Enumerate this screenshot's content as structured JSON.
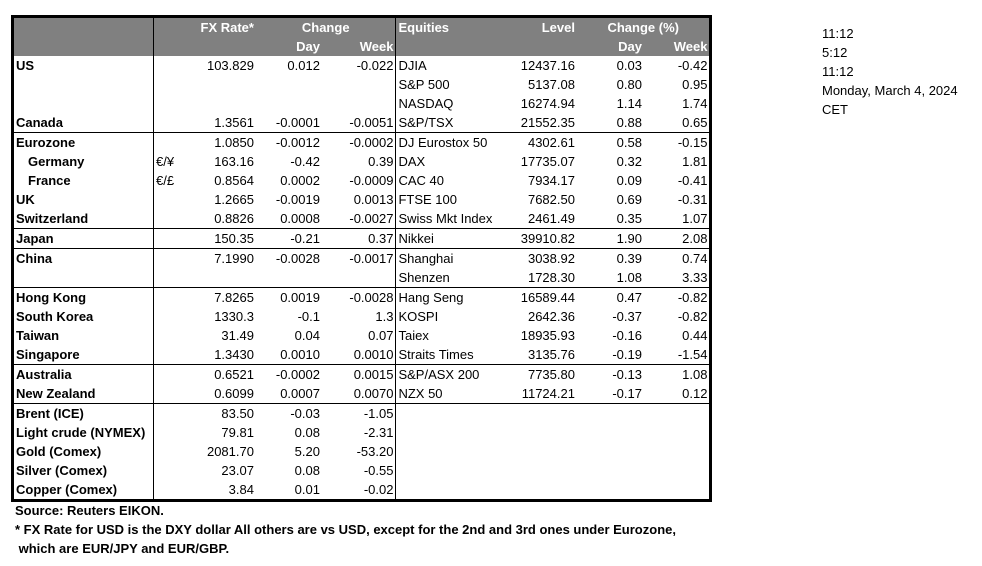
{
  "header": {
    "fx_rate": "FX Rate*",
    "change": "Change",
    "day": "Day",
    "week": "Week",
    "equities": "Equities",
    "level": "Level",
    "change_pct": "Change (%)",
    "eq_day": "Day",
    "eq_week": "Week"
  },
  "groups": [
    {
      "rows": [
        {
          "name": "US",
          "cur": "",
          "fx": "103.829",
          "day": "0.012",
          "week": "-0.022",
          "eq": "DJIA",
          "level": "12437.16",
          "eq_day": "0.03",
          "eq_week": "-0.42"
        },
        {
          "name": "",
          "cur": "",
          "fx": "",
          "day": "",
          "week": "",
          "eq": "S&P 500",
          "level": "5137.08",
          "eq_day": "0.80",
          "eq_week": "0.95"
        },
        {
          "name": "",
          "cur": "",
          "fx": "",
          "day": "",
          "week": "",
          "eq": "NASDAQ",
          "level": "16274.94",
          "eq_day": "1.14",
          "eq_week": "1.74"
        },
        {
          "name": "Canada",
          "cur": "",
          "fx": "1.3561",
          "day": "-0.0001",
          "week": "-0.0051",
          "eq": "S&P/TSX",
          "level": "21552.35",
          "eq_day": "0.88",
          "eq_week": "0.65"
        }
      ]
    },
    {
      "rows": [
        {
          "name": "Eurozone",
          "cur": "",
          "fx": "1.0850",
          "day": "-0.0012",
          "week": "-0.0002",
          "eq": "DJ Eurostox 50",
          "level": "4302.61",
          "eq_day": "0.58",
          "eq_week": "-0.15"
        },
        {
          "name": "Germany",
          "indent": true,
          "cur": "€/¥",
          "fx": "163.16",
          "day": "-0.42",
          "week": "0.39",
          "eq": "DAX",
          "level": "17735.07",
          "eq_day": "0.32",
          "eq_week": "1.81"
        },
        {
          "name": "France",
          "indent": true,
          "cur": "€/£",
          "fx": "0.8564",
          "day": "0.0002",
          "week": "-0.0009",
          "eq": "CAC 40",
          "level": "7934.17",
          "eq_day": "0.09",
          "eq_week": "-0.41"
        },
        {
          "name": "UK",
          "cur": "",
          "fx": "1.2665",
          "day": "-0.0019",
          "week": "0.0013",
          "eq": "FTSE 100",
          "level": "7682.50",
          "eq_day": "0.69",
          "eq_week": "-0.31"
        },
        {
          "name": "Switzerland",
          "cur": "",
          "fx": "0.8826",
          "day": "0.0008",
          "week": "-0.0027",
          "eq": "Swiss Mkt Index",
          "level": "2461.49",
          "eq_day": "0.35",
          "eq_week": "1.07"
        }
      ]
    },
    {
      "rows": [
        {
          "name": "Japan",
          "cur": "",
          "fx": "150.35",
          "day": "-0.21",
          "week": "0.37",
          "eq": "Nikkei",
          "level": "39910.82",
          "eq_day": "1.90",
          "eq_week": "2.08"
        }
      ]
    },
    {
      "rows": [
        {
          "name": "China",
          "cur": "",
          "fx": "7.1990",
          "day": "-0.0028",
          "week": "-0.0017",
          "eq": "Shanghai",
          "level": "3038.92",
          "eq_day": "0.39",
          "eq_week": "0.74"
        },
        {
          "name": "",
          "cur": "",
          "fx": "",
          "day": "",
          "week": "",
          "eq": "Shenzen",
          "level": "1728.30",
          "eq_day": "1.08",
          "eq_week": "3.33"
        }
      ]
    },
    {
      "rows": [
        {
          "name": "Hong Kong",
          "cur": "",
          "fx": "7.8265",
          "day": "0.0019",
          "week": "-0.0028",
          "eq": "Hang Seng",
          "level": "16589.44",
          "eq_day": "0.47",
          "eq_week": "-0.82"
        },
        {
          "name": "South Korea",
          "cur": "",
          "fx": "1330.3",
          "day": "-0.1",
          "week": "1.3",
          "eq": "KOSPI",
          "level": "2642.36",
          "eq_day": "-0.37",
          "eq_week": "-0.82"
        },
        {
          "name": "Taiwan",
          "cur": "",
          "fx": "31.49",
          "day": "0.04",
          "week": "0.07",
          "eq": "Taiex",
          "level": "18935.93",
          "eq_day": "-0.16",
          "eq_week": "0.44"
        },
        {
          "name": "Singapore",
          "cur": "",
          "fx": "1.3430",
          "day": "0.0010",
          "week": "0.0010",
          "eq": "Straits Times",
          "level": "3135.76",
          "eq_day": "-0.19",
          "eq_week": "-1.54"
        }
      ]
    },
    {
      "rows": [
        {
          "name": "Australia",
          "cur": "",
          "fx": "0.6521",
          "day": "-0.0002",
          "week": "0.0015",
          "eq": "S&P/ASX  200",
          "level": "7735.80",
          "eq_day": "-0.13",
          "eq_week": "1.08"
        },
        {
          "name": "New Zealand",
          "cur": "",
          "fx": "0.6099",
          "day": "0.0007",
          "week": "0.0070",
          "eq": "NZX 50",
          "level": "11724.21",
          "eq_day": "-0.17",
          "eq_week": "0.12"
        }
      ]
    },
    {
      "commodities": true,
      "rows": [
        {
          "name": "Brent (ICE)",
          "cur": "",
          "fx": "83.50",
          "day": "-0.03",
          "week": "-1.05"
        },
        {
          "name": "Light crude (NYMEX)",
          "cur": "",
          "fx": "79.81",
          "day": "0.08",
          "week": "-2.31"
        },
        {
          "name": "Gold (Comex)",
          "cur": "",
          "fx": "2081.70",
          "day": "5.20",
          "week": "-53.20"
        },
        {
          "name": "Silver (Comex)",
          "cur": "",
          "fx": "23.07",
          "day": "0.08",
          "week": "-0.55"
        },
        {
          "name": "Copper (Comex)",
          "cur": "",
          "fx": "3.84",
          "day": "0.01",
          "week": "-0.02"
        }
      ]
    }
  ],
  "side_times": [
    "11:12",
    "5:12",
    "11:12",
    "Monday, March 4, 2024",
    "CET"
  ],
  "notes": {
    "source": "Source:  Reuters EIKON.",
    "footnote1": "* FX Rate for USD is the DXY dollar  All others are vs USD, except for the 2nd and 3rd ones under Eurozone,",
    "footnote2": " which are EUR/JPY and EUR/GBP."
  },
  "colors": {
    "header_bg": "#808080",
    "header_text": "#ffffff"
  }
}
